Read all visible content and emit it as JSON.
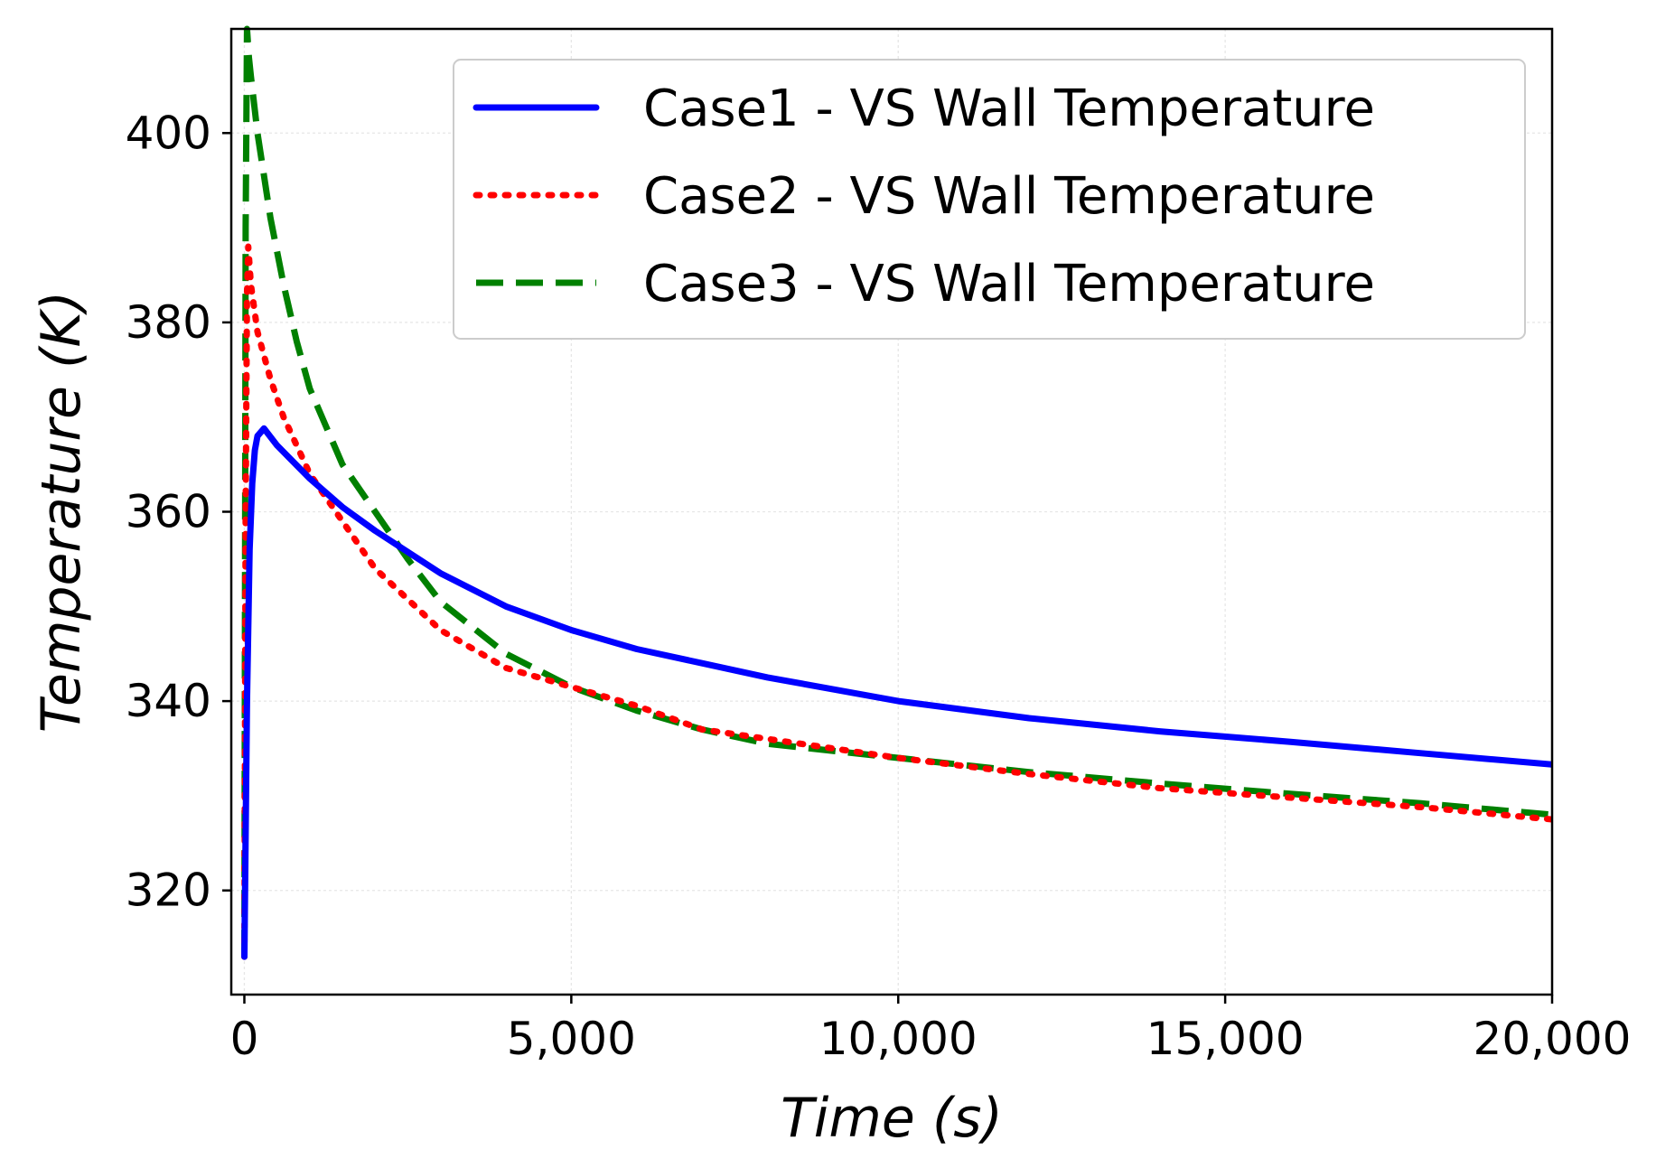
{
  "chart_data": {
    "type": "line",
    "title": "",
    "xlabel": "Time (s)",
    "ylabel": "Temperature (K)",
    "xlim": [
      -200,
      20000
    ],
    "ylim": [
      309,
      411
    ],
    "grid": true,
    "legend_position": "top-right",
    "x_ticks": [
      0,
      5000,
      10000,
      15000,
      20000
    ],
    "x_tick_labels": [
      "0",
      "5,000",
      "10,000",
      "15,000",
      "20,000"
    ],
    "y_ticks": [
      320,
      340,
      360,
      380,
      400
    ],
    "y_tick_labels": [
      "320",
      "340",
      "360",
      "380",
      "400"
    ],
    "series": [
      {
        "name": "Case1 - VS Wall Temperature",
        "color": "#0000ff",
        "style": "solid",
        "x": [
          0,
          40,
          80,
          120,
          160,
          200,
          300,
          500,
          1000,
          1500,
          2000,
          3000,
          4000,
          5000,
          6000,
          7000,
          8000,
          10000,
          12000,
          14000,
          16000,
          18000,
          20000
        ],
        "y": [
          313,
          340,
          356,
          363,
          366.5,
          368,
          368.8,
          367,
          363.5,
          360.5,
          358,
          353.5,
          350,
          347.5,
          345.5,
          344,
          342.5,
          340,
          338.2,
          336.8,
          335.7,
          334.5,
          333.3
        ]
      },
      {
        "name": "Case2 - VS Wall Temperature",
        "color": "#ff0000",
        "style": "dotted",
        "x": [
          0,
          20,
          40,
          60,
          100,
          200,
          400,
          600,
          800,
          1000,
          1500,
          2000,
          3000,
          4000,
          5000,
          6000,
          7000,
          8000,
          10000,
          12000,
          14000,
          16000,
          18000,
          20000
        ],
        "y": [
          313,
          360,
          383,
          388,
          384,
          379,
          374,
          370,
          367,
          364,
          359,
          354,
          347.5,
          343.5,
          341.5,
          339.5,
          337,
          336,
          334,
          332.3,
          330.8,
          329.8,
          328.8,
          327.5
        ]
      },
      {
        "name": "Case3 - VS Wall Temperature",
        "color": "#008000",
        "style": "dashed",
        "x": [
          0,
          20,
          40,
          70,
          100,
          200,
          400,
          600,
          800,
          1000,
          1500,
          2000,
          2500,
          3000,
          4000,
          5000,
          6000,
          7000,
          8000,
          10000,
          12000,
          14000,
          16000,
          18000,
          20000
        ],
        "y": [
          313,
          390,
          411,
          408,
          406,
          400,
          391,
          384,
          378,
          373,
          365,
          360,
          355,
          350.5,
          345,
          341.5,
          339,
          337,
          335.5,
          334,
          332.5,
          331.3,
          330.2,
          329.2,
          328
        ]
      }
    ]
  }
}
